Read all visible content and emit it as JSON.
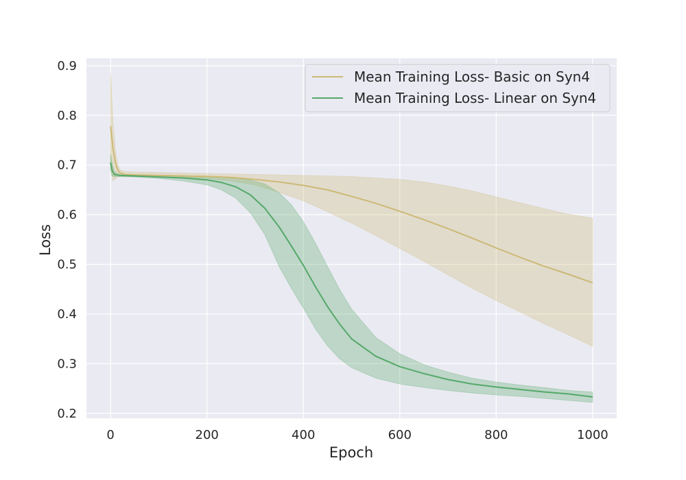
{
  "chart_data": {
    "type": "line",
    "title": "",
    "xlabel": "Epoch",
    "ylabel": "Loss",
    "xlim": [
      -50,
      1050
    ],
    "ylim": [
      0.19,
      0.915
    ],
    "xticks": [
      0,
      200,
      400,
      600,
      800,
      1000
    ],
    "yticks": [
      0.2,
      0.3,
      0.4,
      0.5,
      0.6,
      0.7,
      0.8,
      0.9
    ],
    "xtick_labels": [
      "0",
      "200",
      "400",
      "600",
      "800",
      "1000"
    ],
    "ytick_labels": [
      "0.2",
      "0.3",
      "0.4",
      "0.5",
      "0.6",
      "0.7",
      "0.8",
      "0.9"
    ],
    "grid": true,
    "legend_position": "top-right",
    "style": {
      "background": "#eaeaf2",
      "grid_color": "#ffffff"
    },
    "series": [
      {
        "name": "Mean Training Loss- Basic on Syn4",
        "color": "#ccb974",
        "band_opacity": 0.3,
        "x": [
          0,
          5,
          10,
          15,
          20,
          30,
          50,
          100,
          150,
          200,
          250,
          300,
          350,
          400,
          450,
          500,
          550,
          600,
          650,
          700,
          750,
          800,
          850,
          900,
          950,
          1000
        ],
        "values": [
          0.778,
          0.735,
          0.705,
          0.69,
          0.684,
          0.681,
          0.68,
          0.679,
          0.678,
          0.677,
          0.675,
          0.671,
          0.666,
          0.659,
          0.65,
          0.637,
          0.623,
          0.607,
          0.59,
          0.572,
          0.553,
          0.533,
          0.514,
          0.496,
          0.48,
          0.463
        ],
        "upper": [
          0.885,
          0.79,
          0.73,
          0.7,
          0.69,
          0.687,
          0.686,
          0.685,
          0.684,
          0.683,
          0.682,
          0.681,
          0.68,
          0.679,
          0.678,
          0.677,
          0.674,
          0.671,
          0.666,
          0.658,
          0.648,
          0.636,
          0.624,
          0.612,
          0.601,
          0.593
        ],
        "lower": [
          0.7,
          0.668,
          0.672,
          0.676,
          0.677,
          0.677,
          0.677,
          0.676,
          0.675,
          0.673,
          0.668,
          0.66,
          0.645,
          0.628,
          0.606,
          0.583,
          0.558,
          0.532,
          0.506,
          0.479,
          0.452,
          0.427,
          0.404,
          0.38,
          0.358,
          0.335
        ]
      },
      {
        "name": "Mean Training Loss- Linear on Syn4",
        "color": "#55a868",
        "band_opacity": 0.3,
        "x": [
          0,
          3,
          8,
          20,
          50,
          100,
          150,
          200,
          230,
          260,
          290,
          320,
          350,
          375,
          400,
          425,
          450,
          475,
          500,
          550,
          600,
          650,
          700,
          750,
          800,
          850,
          900,
          950,
          1000
        ],
        "values": [
          0.705,
          0.69,
          0.681,
          0.679,
          0.678,
          0.676,
          0.674,
          0.67,
          0.665,
          0.656,
          0.64,
          0.613,
          0.575,
          0.537,
          0.498,
          0.455,
          0.415,
          0.38,
          0.35,
          0.315,
          0.294,
          0.28,
          0.268,
          0.259,
          0.253,
          0.248,
          0.243,
          0.239,
          0.233
        ],
        "upper": [
          0.722,
          0.705,
          0.686,
          0.681,
          0.68,
          0.679,
          0.678,
          0.677,
          0.676,
          0.674,
          0.67,
          0.662,
          0.644,
          0.62,
          0.586,
          0.543,
          0.496,
          0.45,
          0.41,
          0.353,
          0.32,
          0.298,
          0.283,
          0.271,
          0.263,
          0.257,
          0.252,
          0.246,
          0.243
        ],
        "lower": [
          0.69,
          0.678,
          0.677,
          0.677,
          0.676,
          0.673,
          0.668,
          0.66,
          0.65,
          0.633,
          0.604,
          0.56,
          0.495,
          0.452,
          0.412,
          0.37,
          0.336,
          0.31,
          0.292,
          0.271,
          0.259,
          0.252,
          0.246,
          0.241,
          0.237,
          0.234,
          0.23,
          0.226,
          0.222
        ]
      }
    ]
  }
}
